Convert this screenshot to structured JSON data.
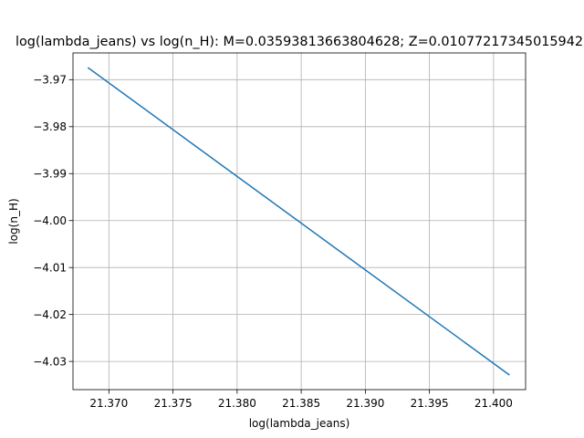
{
  "chart_data": {
    "type": "line",
    "title": "log(lambda_jeans) vs log(n_H): M=0.03593813663804628; Z=0.01077217345015942",
    "xlabel": "log(lambda_jeans)",
    "ylabel": "log(n_H)",
    "xlim": [
      21.3672,
      21.4025
    ],
    "ylim": [
      -4.036,
      -3.9643
    ],
    "xticks": [
      21.37,
      21.375,
      21.38,
      21.385,
      21.39,
      21.395,
      21.4
    ],
    "xtick_labels": [
      "21.370",
      "21.375",
      "21.380",
      "21.385",
      "21.390",
      "21.395",
      "21.400"
    ],
    "yticks": [
      -3.97,
      -3.98,
      -3.99,
      -4.0,
      -4.01,
      -4.02,
      -4.03
    ],
    "ytick_labels": [
      "−3.97",
      "−3.98",
      "−3.99",
      "−4.00",
      "−4.01",
      "−4.02",
      "−4.03"
    ],
    "grid": true,
    "series": [
      {
        "color": "#1f77b4",
        "x": [
          21.3684,
          21.4012
        ],
        "y": [
          -3.9675,
          -4.0328
        ]
      }
    ]
  }
}
